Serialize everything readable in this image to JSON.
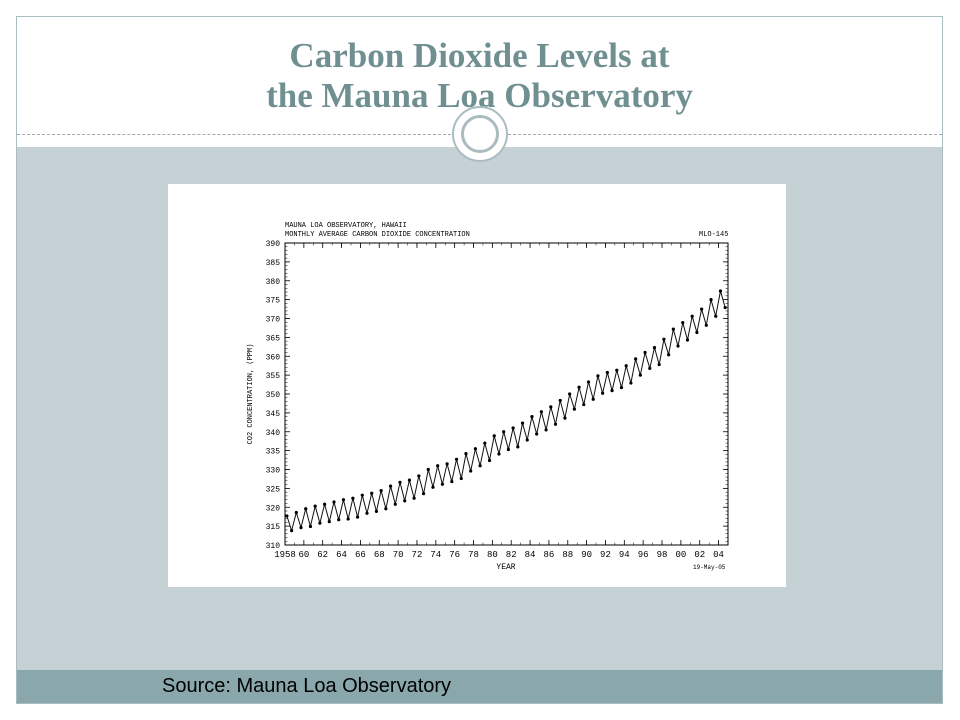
{
  "slide": {
    "title_line1": "Carbon Dioxide Levels at",
    "title_line2": "the Mauna Loa Observatory",
    "source": "Source: Mauna Loa Observatory"
  },
  "colors": {
    "title_text": "#6f8f91",
    "content_bg": "#c6d1d6",
    "footer_bg": "#8aa8ab",
    "ring_border": "#a9bcbf"
  },
  "chart_data": {
    "type": "line",
    "header_line1": "MAUNA LOA OBSERVATORY, HAWAII",
    "header_line2": "MONTHLY AVERAGE CARBON DIOXIDE CONCENTRATION",
    "chart_id": "MLO-145",
    "date_stamp": "19-May-05",
    "xlabel": "YEAR",
    "ylabel": "CO2 CONCENTRATION, (PPM)",
    "xlim": [
      1958,
      2005
    ],
    "ylim": [
      310,
      390
    ],
    "x_ticks": [
      "1958",
      "60",
      "62",
      "64",
      "66",
      "68",
      "70",
      "72",
      "74",
      "76",
      "78",
      "80",
      "82",
      "84",
      "86",
      "88",
      "90",
      "92",
      "94",
      "96",
      "98",
      "00",
      "02",
      "04"
    ],
    "y_ticks": [
      "310",
      "315",
      "320",
      "325",
      "330",
      "335",
      "340",
      "345",
      "350",
      "355",
      "360",
      "365",
      "370",
      "375",
      "380",
      "385",
      "390"
    ],
    "series": [
      {
        "x": [
          1958.2,
          1958.7,
          1959.2,
          1959.7,
          1960.2,
          1960.7,
          1961.2,
          1961.7,
          1962.2,
          1962.7,
          1963.2,
          1963.7,
          1964.2,
          1964.7,
          1965.2,
          1965.7,
          1966.2,
          1966.7,
          1967.2,
          1967.7,
          1968.2,
          1968.7,
          1969.2,
          1969.7,
          1970.2,
          1970.7,
          1971.2,
          1971.7,
          1972.2,
          1972.7,
          1973.2,
          1973.7,
          1974.2,
          1974.7,
          1975.2,
          1975.7,
          1976.2,
          1976.7,
          1977.2,
          1977.7,
          1978.2,
          1978.7,
          1979.2,
          1979.7,
          1980.2,
          1980.7,
          1981.2,
          1981.7,
          1982.2,
          1982.7,
          1983.2,
          1983.7,
          1984.2,
          1984.7,
          1985.2,
          1985.7,
          1986.2,
          1986.7,
          1987.2,
          1987.7,
          1988.2,
          1988.7,
          1989.2,
          1989.7,
          1990.2,
          1990.7,
          1991.2,
          1991.7,
          1992.2,
          1992.7,
          1993.2,
          1993.7,
          1994.2,
          1994.7,
          1995.2,
          1995.7,
          1996.2,
          1996.7,
          1997.2,
          1997.7,
          1998.2,
          1998.7,
          1999.2,
          1999.7,
          2000.2,
          2000.7,
          2001.2,
          2001.7,
          2002.2,
          2002.7,
          2003.2,
          2003.7,
          2004.2,
          2004.7
        ],
        "values": [
          317.7,
          313.8,
          318.6,
          314.6,
          319.6,
          314.9,
          320.3,
          315.8,
          320.8,
          316.2,
          321.4,
          316.7,
          322.0,
          316.9,
          322.4,
          317.4,
          323.2,
          318.4,
          323.7,
          318.9,
          324.4,
          319.6,
          325.6,
          320.8,
          326.6,
          321.7,
          327.2,
          322.4,
          328.3,
          323.6,
          330.0,
          325.3,
          331.0,
          326.1,
          331.5,
          326.8,
          332.7,
          327.6,
          334.2,
          329.6,
          335.5,
          331.0,
          337.0,
          332.4,
          338.9,
          334.1,
          340.0,
          335.3,
          341.0,
          336.0,
          342.3,
          337.8,
          344.0,
          339.4,
          345.3,
          340.5,
          346.6,
          342.0,
          348.3,
          343.6,
          350.0,
          346.0,
          351.8,
          347.2,
          353.2,
          348.6,
          354.8,
          350.2,
          355.7,
          350.9,
          356.3,
          351.7,
          357.5,
          352.9,
          359.3,
          355.0,
          361.0,
          356.8,
          362.3,
          357.8,
          364.5,
          360.4,
          367.2,
          362.7,
          368.9,
          364.3,
          370.6,
          366.3,
          372.5,
          368.2,
          375.0,
          370.6,
          377.3,
          372.9
        ]
      }
    ],
    "grid": false,
    "legend": "none"
  }
}
